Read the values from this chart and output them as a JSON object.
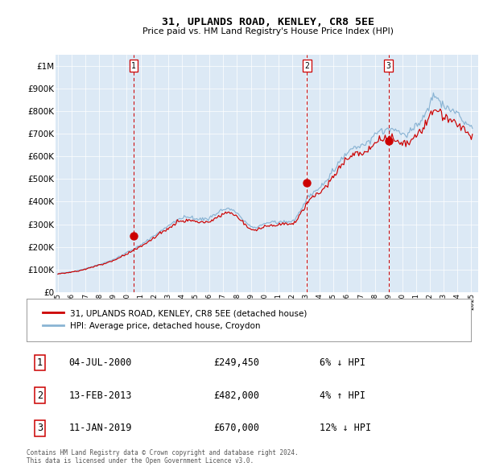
{
  "title": "31, UPLANDS ROAD, KENLEY, CR8 5EE",
  "subtitle": "Price paid vs. HM Land Registry's House Price Index (HPI)",
  "sale_times": [
    2000.5,
    2013.083,
    2019.0
  ],
  "sale_prices": [
    249450,
    482000,
    670000
  ],
  "sale_labels": [
    "1",
    "2",
    "3"
  ],
  "sale_dates_display": [
    "04-JUL-2000",
    "13-FEB-2013",
    "11-JAN-2019"
  ],
  "sale_prices_display": [
    "£249,450",
    "£482,000",
    "£670,000"
  ],
  "sale_pct_display": [
    "6% ↓ HPI",
    "4% ↑ HPI",
    "12% ↓ HPI"
  ],
  "legend_red": "31, UPLANDS ROAD, KENLEY, CR8 5EE (detached house)",
  "legend_blue": "HPI: Average price, detached house, Croydon",
  "footnote1": "Contains HM Land Registry data © Crown copyright and database right 2024.",
  "footnote2": "This data is licensed under the Open Government Licence v3.0.",
  "bg_color": "#dce9f5",
  "red_color": "#cc0000",
  "blue_color": "#8ab4d4",
  "ylim": [
    0,
    1050000
  ],
  "xlim": [
    1994.83,
    2025.5
  ],
  "yticks": [
    0,
    100000,
    200000,
    300000,
    400000,
    500000,
    600000,
    700000,
    800000,
    900000,
    1000000
  ],
  "ytick_labels": [
    "£0",
    "£100K",
    "£200K",
    "£300K",
    "£400K",
    "£500K",
    "£600K",
    "£700K",
    "£800K",
    "£900K",
    "£1M"
  ],
  "hpi_anchors": [
    [
      1994.83,
      78000
    ],
    [
      1995.5,
      86000
    ],
    [
      1996.5,
      96000
    ],
    [
      1997.5,
      113000
    ],
    [
      1998.5,
      132000
    ],
    [
      1999.5,
      158000
    ],
    [
      2000.5,
      192000
    ],
    [
      2001.5,
      228000
    ],
    [
      2002.5,
      272000
    ],
    [
      2003.5,
      312000
    ],
    [
      2004.5,
      332000
    ],
    [
      2005.0,
      325000
    ],
    [
      2005.5,
      322000
    ],
    [
      2006.5,
      345000
    ],
    [
      2007.3,
      368000
    ],
    [
      2008.2,
      335000
    ],
    [
      2009.2,
      287000
    ],
    [
      2010.0,
      302000
    ],
    [
      2010.8,
      308000
    ],
    [
      2011.5,
      313000
    ],
    [
      2012.3,
      328000
    ],
    [
      2013.1,
      415000
    ],
    [
      2014.0,
      462000
    ],
    [
      2015.0,
      536000
    ],
    [
      2016.0,
      618000
    ],
    [
      2016.8,
      648000
    ],
    [
      2017.5,
      662000
    ],
    [
      2018.0,
      695000
    ],
    [
      2018.8,
      718000
    ],
    [
      2019.5,
      715000
    ],
    [
      2020.2,
      695000
    ],
    [
      2020.9,
      728000
    ],
    [
      2021.5,
      775000
    ],
    [
      2022.1,
      845000
    ],
    [
      2022.5,
      862000
    ],
    [
      2022.9,
      835000
    ],
    [
      2023.5,
      808000
    ],
    [
      2024.0,
      792000
    ],
    [
      2024.5,
      758000
    ],
    [
      2025.0,
      735000
    ]
  ],
  "red_factors": [
    [
      1994.83,
      0.99
    ],
    [
      1999.0,
      0.97
    ],
    [
      2000.4,
      0.965
    ],
    [
      2003.0,
      0.96
    ],
    [
      2007.0,
      0.955
    ],
    [
      2009.0,
      0.96
    ],
    [
      2013.0,
      0.958
    ],
    [
      2016.0,
      0.955
    ],
    [
      2019.0,
      0.945
    ],
    [
      2022.0,
      0.935
    ],
    [
      2025.0,
      0.94
    ]
  ]
}
